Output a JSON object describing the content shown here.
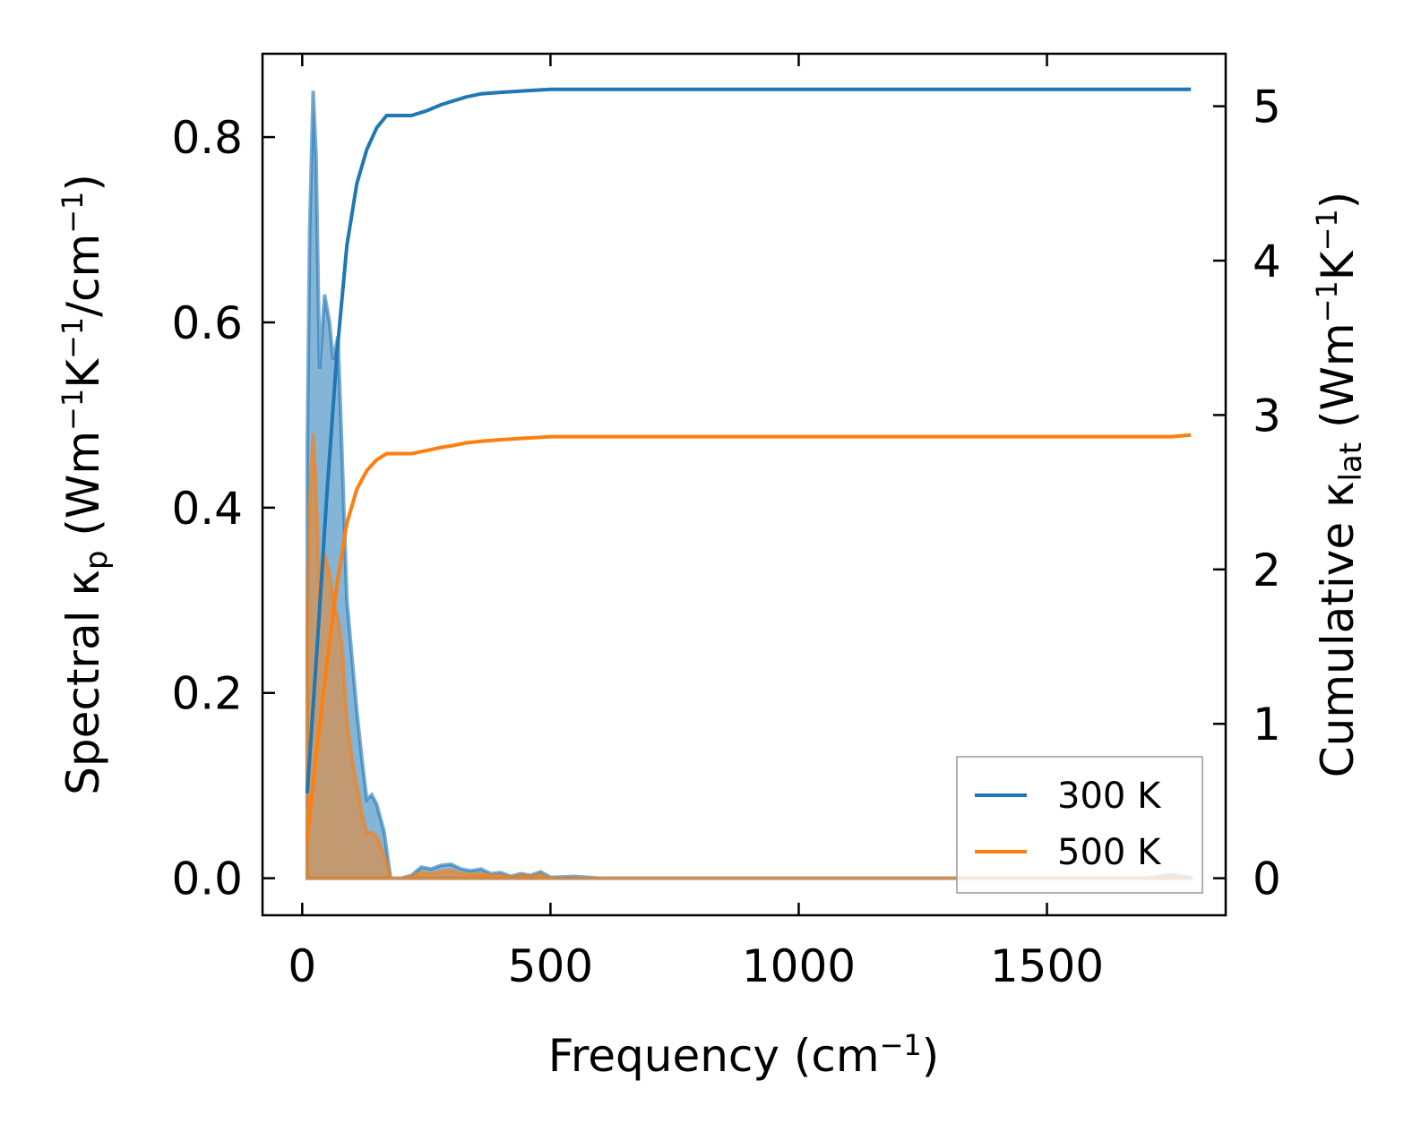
{
  "chart_data": {
    "type": "line",
    "xlabel": {
      "main": "Frequency (cm",
      "sup": "−1",
      "tail": ")"
    },
    "ylabel_left": {
      "main": "Spectral κ",
      "sub": "p",
      "rest": " (Wm",
      "sup1": "−1",
      "mid": "K",
      "sup2": "−1",
      "mid2": "/cm",
      "sup3": "−1",
      "tail": ")"
    },
    "ylabel_right": {
      "main": "Cumulative κ",
      "sub": "lat",
      "rest": " (Wm",
      "sup1": "−1",
      "mid": "K",
      "sup2": "−1",
      "tail": ")"
    },
    "xlim": [
      -80,
      1860
    ],
    "ylim_left": [
      -0.04,
      0.89
    ],
    "ylim_right": [
      -0.24,
      5.34
    ],
    "xticks": [
      0,
      500,
      1000,
      1500
    ],
    "xtick_labels": [
      "0",
      "500",
      "1000",
      "1500"
    ],
    "yticks_left": [
      0.0,
      0.2,
      0.4,
      0.6,
      0.8
    ],
    "ytick_labels_left": [
      "0.0",
      "0.2",
      "0.4",
      "0.6",
      "0.8"
    ],
    "yticks_right": [
      0,
      1,
      2,
      3,
      4,
      5
    ],
    "ytick_labels_right": [
      "0",
      "1",
      "2",
      "3",
      "4",
      "5"
    ],
    "legend": {
      "placement": "lower-right",
      "entries": [
        "300 K",
        "500 K"
      ]
    },
    "colors": {
      "300K": "#1f77b4",
      "500K": "#ff7f0e"
    },
    "series": [
      {
        "name": "300 K",
        "color": "#1f77b4",
        "spectral": [
          [
            10,
            0
          ],
          [
            10,
            0.46
          ],
          [
            15,
            0.7
          ],
          [
            22,
            0.85
          ],
          [
            28,
            0.78
          ],
          [
            35,
            0.55
          ],
          [
            45,
            0.63
          ],
          [
            55,
            0.6
          ],
          [
            62,
            0.56
          ],
          [
            72,
            0.585
          ],
          [
            80,
            0.46
          ],
          [
            90,
            0.3
          ],
          [
            100,
            0.24
          ],
          [
            110,
            0.18
          ],
          [
            120,
            0.13
          ],
          [
            130,
            0.085
          ],
          [
            140,
            0.09
          ],
          [
            150,
            0.08
          ],
          [
            165,
            0.05
          ],
          [
            178,
            0.0
          ],
          [
            200,
            0.0
          ],
          [
            220,
            0.003
          ],
          [
            240,
            0.012
          ],
          [
            260,
            0.01
          ],
          [
            280,
            0.014
          ],
          [
            300,
            0.015
          ],
          [
            320,
            0.01
          ],
          [
            340,
            0.008
          ],
          [
            360,
            0.01
          ],
          [
            380,
            0.005
          ],
          [
            400,
            0.006
          ],
          [
            420,
            0.002
          ],
          [
            440,
            0.005
          ],
          [
            460,
            0.003
          ],
          [
            480,
            0.007
          ],
          [
            500,
            0.001
          ],
          [
            550,
            0.002
          ],
          [
            600,
            0.0
          ],
          [
            700,
            0.0
          ],
          [
            1000,
            0.0
          ],
          [
            1500,
            0.0
          ],
          [
            1700,
            0.0
          ],
          [
            1750,
            0.004
          ],
          [
            1790,
            0.001
          ],
          [
            1790,
            0
          ]
        ],
        "cumulative": [
          [
            10,
            0.55
          ],
          [
            30,
            1.5
          ],
          [
            50,
            2.5
          ],
          [
            70,
            3.4
          ],
          [
            90,
            4.1
          ],
          [
            110,
            4.5
          ],
          [
            130,
            4.72
          ],
          [
            150,
            4.86
          ],
          [
            170,
            4.94
          ],
          [
            190,
            4.94
          ],
          [
            220,
            4.94
          ],
          [
            250,
            4.97
          ],
          [
            280,
            5.01
          ],
          [
            300,
            5.03
          ],
          [
            330,
            5.06
          ],
          [
            360,
            5.08
          ],
          [
            400,
            5.09
          ],
          [
            450,
            5.1
          ],
          [
            500,
            5.11
          ],
          [
            600,
            5.11
          ],
          [
            1000,
            5.11
          ],
          [
            1500,
            5.11
          ],
          [
            1790,
            5.11
          ]
        ]
      },
      {
        "name": "500 K",
        "color": "#ff7f0e",
        "spectral": [
          [
            10,
            0
          ],
          [
            10,
            0.27
          ],
          [
            15,
            0.4
          ],
          [
            22,
            0.48
          ],
          [
            28,
            0.42
          ],
          [
            35,
            0.3
          ],
          [
            45,
            0.35
          ],
          [
            55,
            0.33
          ],
          [
            62,
            0.3
          ],
          [
            72,
            0.28
          ],
          [
            80,
            0.25
          ],
          [
            90,
            0.17
          ],
          [
            100,
            0.13
          ],
          [
            110,
            0.1
          ],
          [
            120,
            0.07
          ],
          [
            130,
            0.048
          ],
          [
            140,
            0.05
          ],
          [
            150,
            0.045
          ],
          [
            165,
            0.025
          ],
          [
            178,
            0.0
          ],
          [
            200,
            0.0
          ],
          [
            220,
            0.002
          ],
          [
            240,
            0.006
          ],
          [
            260,
            0.005
          ],
          [
            280,
            0.007
          ],
          [
            300,
            0.008
          ],
          [
            320,
            0.005
          ],
          [
            340,
            0.004
          ],
          [
            360,
            0.005
          ],
          [
            380,
            0.003
          ],
          [
            400,
            0.003
          ],
          [
            420,
            0.001
          ],
          [
            440,
            0.003
          ],
          [
            460,
            0.002
          ],
          [
            480,
            0.004
          ],
          [
            500,
            0.0
          ],
          [
            600,
            0.0
          ],
          [
            1000,
            0.0
          ],
          [
            1500,
            0.0
          ],
          [
            1700,
            0.0
          ],
          [
            1750,
            0.002
          ],
          [
            1790,
            0.0
          ],
          [
            1790,
            0
          ]
        ],
        "cumulative": [
          [
            10,
            0.25
          ],
          [
            30,
            0.85
          ],
          [
            50,
            1.4
          ],
          [
            70,
            1.9
          ],
          [
            90,
            2.3
          ],
          [
            110,
            2.52
          ],
          [
            130,
            2.64
          ],
          [
            150,
            2.71
          ],
          [
            170,
            2.75
          ],
          [
            190,
            2.75
          ],
          [
            220,
            2.75
          ],
          [
            250,
            2.77
          ],
          [
            280,
            2.79
          ],
          [
            300,
            2.8
          ],
          [
            330,
            2.82
          ],
          [
            360,
            2.83
          ],
          [
            400,
            2.84
          ],
          [
            450,
            2.85
          ],
          [
            500,
            2.86
          ],
          [
            600,
            2.86
          ],
          [
            1000,
            2.86
          ],
          [
            1500,
            2.86
          ],
          [
            1750,
            2.86
          ],
          [
            1790,
            2.87
          ]
        ]
      }
    ]
  }
}
